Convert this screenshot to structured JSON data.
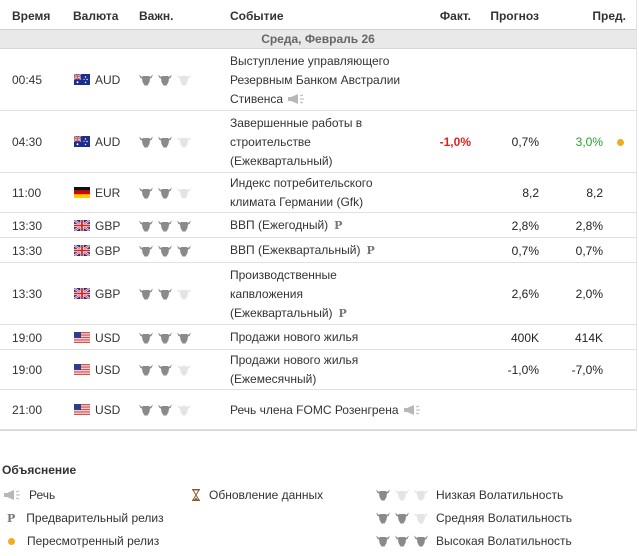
{
  "header": {
    "time": "Время",
    "currency": "Валюта",
    "importance": "Важн.",
    "event": "Событие",
    "actual": "Факт.",
    "forecast": "Прогноз",
    "previous": "Пред."
  },
  "day_label": "Среда, Февраль 26",
  "events": [
    {
      "time": "00:45",
      "flag": "australia-flag-icon",
      "currency": "AUD",
      "importance": 2,
      "event_lines": [
        "Выступление управляющего",
        "Резервным Банком Австралии",
        "Стивенса"
      ],
      "icon": "speech-icon",
      "actual": "",
      "forecast": "",
      "previous": ""
    },
    {
      "time": "04:30",
      "flag": "australia-flag-icon",
      "currency": "AUD",
      "importance": 2,
      "event_lines": [
        "Завершенные работы в",
        "строительстве",
        "(Ежеквартальный)"
      ],
      "icon": "",
      "actual": "-1,0%",
      "forecast": "0,7%",
      "previous": "3,0%",
      "revised": true
    },
    {
      "time": "11:00",
      "flag": "germany-flag-icon",
      "currency": "EUR",
      "importance": 2,
      "event_lines": [
        "Индекс потребительского",
        "климата Германии (Gfk)"
      ],
      "icon": "",
      "actual": "",
      "forecast": "8,2",
      "previous": "8,2"
    },
    {
      "time": "13:30",
      "flag": "uk-flag-icon",
      "currency": "GBP",
      "importance": 3,
      "event_lines": [
        "ВВП (Ежегодный)"
      ],
      "icon": "preliminary-icon",
      "actual": "",
      "forecast": "2,8%",
      "previous": "2,8%"
    },
    {
      "time": "13:30",
      "flag": "uk-flag-icon",
      "currency": "GBP",
      "importance": 3,
      "event_lines": [
        "ВВП (Ежеквартальный)"
      ],
      "icon": "preliminary-icon",
      "actual": "",
      "forecast": "0,7%",
      "previous": "0,7%"
    },
    {
      "time": "13:30",
      "flag": "uk-flag-icon",
      "currency": "GBP",
      "importance": 2,
      "event_lines": [
        "Производственные",
        "капвложения",
        "(Ежеквартальный)"
      ],
      "icon": "preliminary-icon",
      "actual": "",
      "forecast": "2,6%",
      "previous": "2,0%"
    },
    {
      "time": "19:00",
      "flag": "us-flag-icon",
      "currency": "USD",
      "importance": 3,
      "event_lines": [
        "Продажи нового жилья"
      ],
      "icon": "",
      "actual": "",
      "forecast": "400K",
      "previous": "414K"
    },
    {
      "time": "19:00",
      "flag": "us-flag-icon",
      "currency": "USD",
      "importance": 2,
      "event_lines": [
        "Продажи нового жилья",
        "(Ежемесячный)"
      ],
      "icon": "",
      "actual": "",
      "forecast": "-1,0%",
      "previous": "-7,0%"
    },
    {
      "time": "21:00",
      "flag": "us-flag-icon",
      "currency": "USD",
      "importance": 2,
      "event_lines": [
        "Речь члена FOMC Розенгрена"
      ],
      "icon": "speech-icon",
      "actual": "",
      "forecast": "",
      "previous": ""
    }
  ],
  "legend": {
    "title": "Объяснение",
    "speech": "Речь",
    "preliminary": "Предварительный релиз",
    "revised": "Пересмотренный релиз",
    "data_update": "Обновление данных",
    "low": "Низкая Волатильность",
    "medium": "Средняя Волатильность",
    "high": "Высокая Волатильность"
  },
  "colors": {
    "negative": "#e02020",
    "positive": "#26a026",
    "revised_dot": "#f0ad1e",
    "bull_on": "#8a8a8a",
    "bull_off": "#e4e4e4"
  }
}
